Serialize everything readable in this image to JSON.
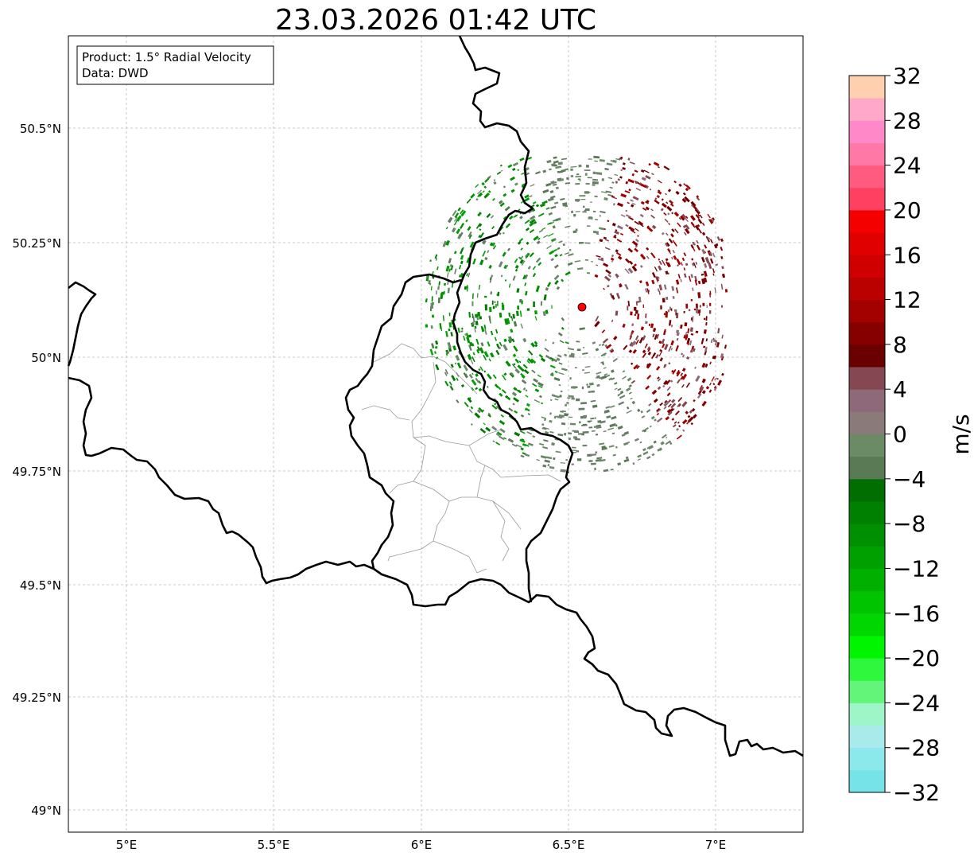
{
  "title": "23.03.2026 01:42 UTC",
  "info_box": {
    "product": "Product: 1.5° Radial Velocity",
    "data": "Data: DWD"
  },
  "map": {
    "lat_ticks": [
      "50.5°N",
      "50.25°N",
      "50°N",
      "49.75°N",
      "49.5°N",
      "49.25°N",
      "49°N"
    ],
    "lon_ticks": [
      "5°E",
      "5.5°E",
      "6°E",
      "6.5°E",
      "7°E"
    ],
    "radar_site_color": "#ff0000"
  },
  "colorbar": {
    "label": "m/s",
    "min": -32,
    "max": 32,
    "step": 2,
    "tick_labels": [
      "32",
      "28",
      "24",
      "20",
      "16",
      "12",
      "8",
      "4",
      "0",
      "−4",
      "−8",
      "−12",
      "−16",
      "−20",
      "−24",
      "−28",
      "−32"
    ],
    "colors_bottom_to_top": [
      "#76e3e8",
      "#8be9ec",
      "#a9eaea",
      "#9ef5c8",
      "#63f579",
      "#2ff73d",
      "#00f500",
      "#00d600",
      "#00c400",
      "#00b000",
      "#00a000",
      "#008f00",
      "#008000",
      "#006e00",
      "#5a7a55",
      "#6b8a66",
      "#8a7a7a",
      "#8e6a78",
      "#854852",
      "#6b0000",
      "#870000",
      "#a30000",
      "#bb0000",
      "#d10000",
      "#e00000",
      "#f50000",
      "#ff4060",
      "#ff5a80",
      "#ff78a6",
      "#ff88c8",
      "#ffa8c8",
      "#ffd0b0"
    ]
  }
}
